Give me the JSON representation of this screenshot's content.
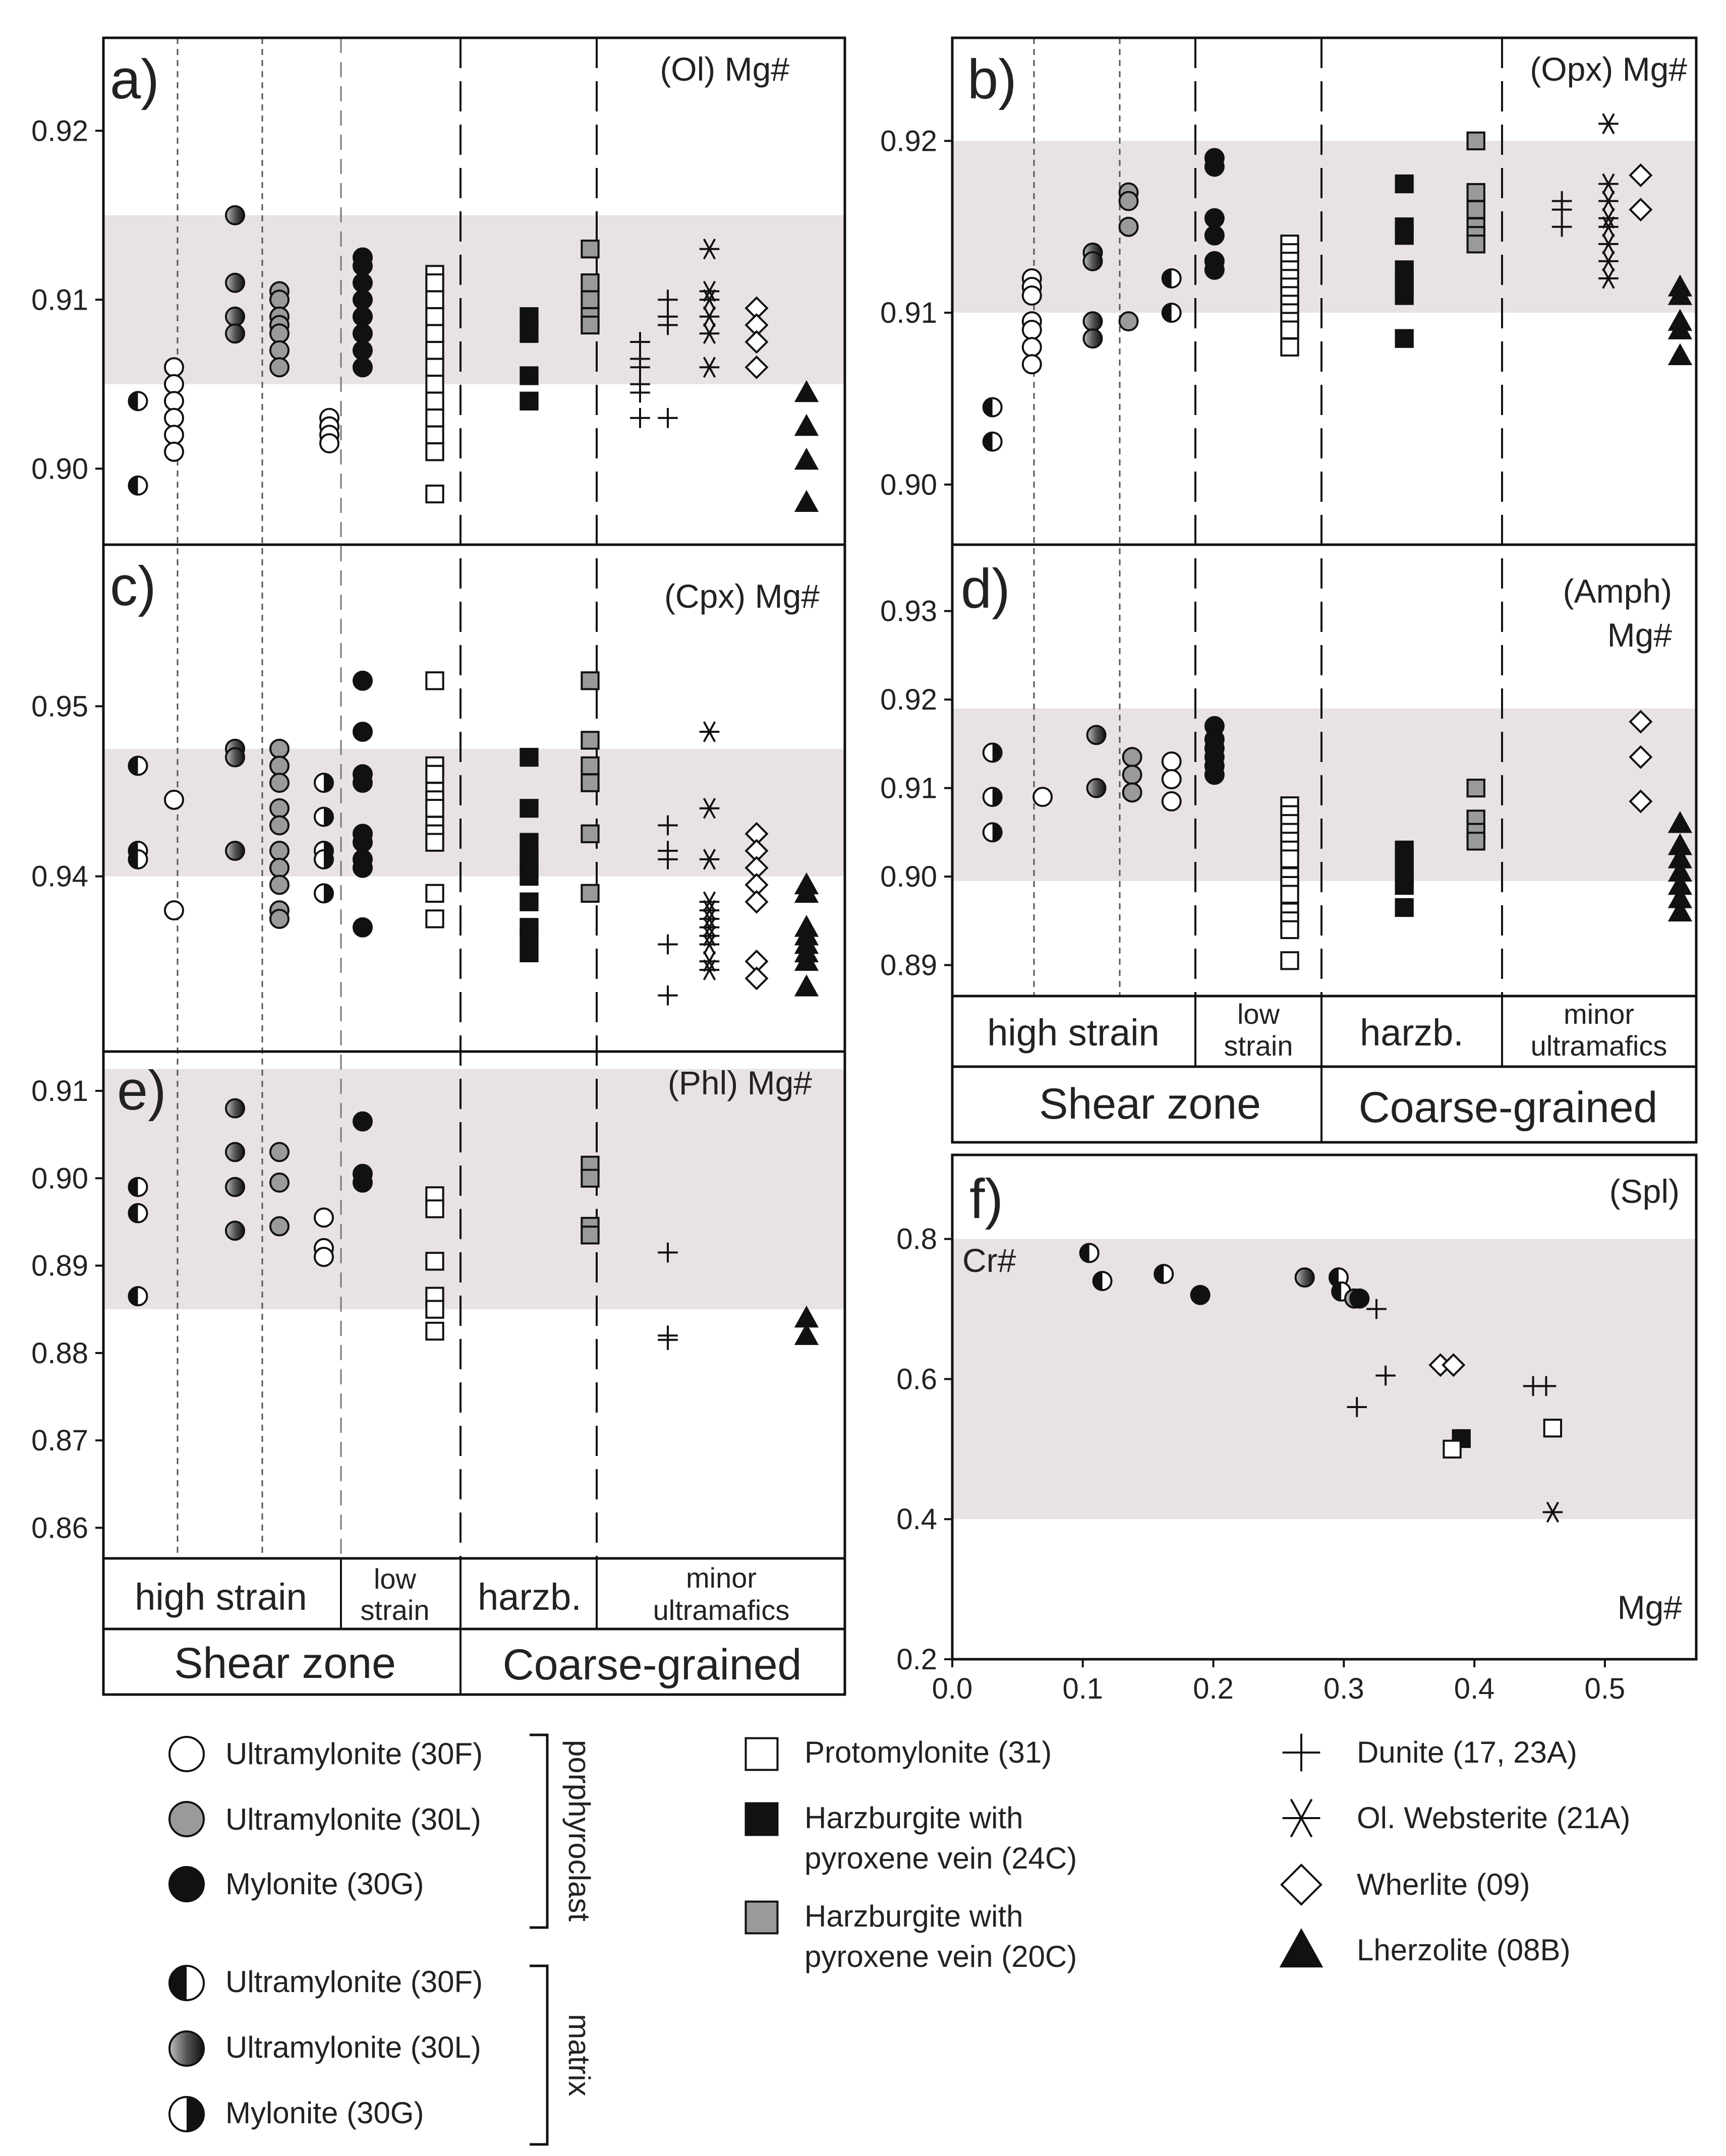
{
  "colors": {
    "band": "#e9e2e4",
    "white": "#ffffff",
    "grey": "#9a9a9a",
    "black": "#111111"
  },
  "series_styles": {
    "UP_F": {
      "shape": "circle",
      "fill": "white"
    },
    "UP_L": {
      "shape": "circle",
      "fill": "grey"
    },
    "MY_G": {
      "shape": "circle",
      "fill": "black"
    },
    "UM_F": {
      "shape": "circle",
      "fill": "half-left"
    },
    "UM_L": {
      "shape": "circle",
      "fill": "gradient"
    },
    "MM_G": {
      "shape": "circle",
      "fill": "half-right"
    },
    "PROTO": {
      "shape": "square",
      "fill": "white"
    },
    "HZ24": {
      "shape": "square",
      "fill": "black"
    },
    "HZ20": {
      "shape": "square",
      "fill": "grey"
    },
    "DUN": {
      "shape": "plus",
      "fill": "none"
    },
    "WEB": {
      "shape": "asterisk",
      "fill": "none"
    },
    "WHE": {
      "shape": "diamond",
      "fill": "white"
    },
    "LHZ": {
      "shape": "triangle",
      "fill": "black"
    }
  },
  "chart_data": [
    {
      "id": "a",
      "type": "scatter",
      "letter": "a)",
      "title": "(Ol) Mg#",
      "ylim": [
        0.8955,
        0.9255
      ],
      "yticks": [
        "0.90",
        "0.91",
        "0.92"
      ],
      "band": [
        0.905,
        0.915
      ],
      "points": [
        {
          "series": "UM_F",
          "col": 0.35,
          "y": [
            0.904,
            0.899
          ]
        },
        {
          "series": "UP_F",
          "col": 1,
          "y": [
            0.906,
            0.905,
            0.904,
            0.903,
            0.902,
            0.901
          ]
        },
        {
          "series": "UM_L",
          "col": 2.1,
          "y": [
            0.915,
            0.911,
            0.909,
            0.908
          ]
        },
        {
          "series": "UP_L",
          "col": 2.9,
          "y": [
            0.9105,
            0.91,
            0.909,
            0.9085,
            0.908,
            0.907,
            0.906
          ]
        },
        {
          "series": "UP_F",
          "col": 3.8,
          "y": [
            0.903,
            0.9025,
            0.902,
            0.9015
          ]
        },
        {
          "series": "MY_G",
          "col": 4.4,
          "y": [
            0.9125,
            0.912,
            0.911,
            0.91,
            0.909,
            0.908,
            0.907,
            0.906
          ]
        },
        {
          "series": "PROTO",
          "col": 5.7,
          "y": [
            0.9115,
            0.911,
            0.91,
            0.909,
            0.908,
            0.907,
            0.906,
            0.905,
            0.904,
            0.903,
            0.902,
            0.901,
            0.8985
          ]
        },
        {
          "series": "HZ24",
          "col": 7.4,
          "y": [
            0.909,
            0.908,
            0.9055,
            0.904
          ]
        },
        {
          "series": "HZ20",
          "col": 8.5,
          "y": [
            0.913,
            0.911,
            0.91,
            0.909,
            0.9085
          ]
        },
        {
          "series": "DUN",
          "col": 9.4,
          "y": [
            0.9075,
            0.9065,
            0.906,
            0.905,
            0.9045,
            0.903
          ]
        },
        {
          "series": "DUN",
          "col": 9.9,
          "y": [
            0.91,
            0.909,
            0.9085,
            0.903
          ]
        },
        {
          "series": "WEB",
          "col": 10.65,
          "y": [
            0.913,
            0.9105,
            0.91,
            0.909,
            0.908,
            0.906
          ]
        },
        {
          "series": "WHE",
          "col": 11.5,
          "y": [
            0.9095,
            0.9085,
            0.9075,
            0.906
          ]
        },
        {
          "series": "LHZ",
          "col": 12.4,
          "y": [
            0.9045,
            0.9025,
            0.9005,
            0.898
          ]
        }
      ]
    },
    {
      "id": "b",
      "type": "scatter",
      "letter": "b)",
      "title": "(Opx) Mg#",
      "ylim": [
        0.8965,
        0.926
      ],
      "yticks": [
        "0.90",
        "0.91",
        "0.92"
      ],
      "band": [
        0.91,
        0.92
      ],
      "points": [
        {
          "series": "UM_F",
          "col": 0.35,
          "y": [
            0.9045,
            0.9025
          ]
        },
        {
          "series": "UP_F",
          "col": 0.9,
          "y": [
            0.912,
            0.9115,
            0.911,
            0.9095,
            0.909,
            0.908,
            0.907
          ]
        },
        {
          "series": "UM_L",
          "col": 1.75,
          "y": [
            0.9135,
            0.913,
            0.9095,
            0.9085
          ]
        },
        {
          "series": "UP_L",
          "col": 2.25,
          "y": [
            0.917,
            0.9165,
            0.915,
            0.9095
          ]
        },
        {
          "series": "UM_F",
          "col": 2.85,
          "y": [
            0.912,
            0.91
          ]
        },
        {
          "series": "MY_G",
          "col": 3.45,
          "y": [
            0.919,
            0.9185,
            0.9155,
            0.9145,
            0.913,
            0.9125
          ]
        },
        {
          "series": "PROTO",
          "col": 4.5,
          "y": [
            0.914,
            0.9135,
            0.913,
            0.9125,
            0.912,
            0.9115,
            0.911,
            0.9105,
            0.91,
            0.9095,
            0.909,
            0.908
          ]
        },
        {
          "series": "HZ24",
          "col": 6.1,
          "y": [
            0.9175,
            0.915,
            0.9145,
            0.9125,
            0.912,
            0.9115,
            0.911,
            0.9085
          ]
        },
        {
          "series": "HZ20",
          "col": 7.1,
          "y": [
            0.92,
            0.917,
            0.916,
            0.915,
            0.9145,
            0.914
          ]
        },
        {
          "series": "DUN",
          "col": 8.3,
          "y": [
            0.9165,
            0.916,
            0.915
          ]
        },
        {
          "series": "WEB",
          "col": 8.95,
          "y": [
            0.921,
            0.9175,
            0.9165,
            0.9155,
            0.915,
            0.914,
            0.913,
            0.912
          ]
        },
        {
          "series": "WHE",
          "col": 9.4,
          "y": [
            0.918,
            0.916
          ]
        },
        {
          "series": "LHZ",
          "col": 9.95,
          "y": [
            0.9115,
            0.911,
            0.9095,
            0.909,
            0.9075
          ]
        }
      ]
    },
    {
      "id": "c",
      "type": "scatter",
      "letter": "c)",
      "title": "(Cpx) Mg#",
      "ylim": [
        0.9297,
        0.9595
      ],
      "yticks": [
        "0.94",
        "0.95"
      ],
      "band": [
        0.94,
        0.9475
      ],
      "points": [
        {
          "series": "UM_F",
          "col": 0.35,
          "y": [
            0.9465,
            0.9415,
            0.941
          ]
        },
        {
          "series": "UP_F",
          "col": 1,
          "y": [
            0.9445,
            0.938
          ]
        },
        {
          "series": "UM_L",
          "col": 2.1,
          "y": [
            0.9475,
            0.947,
            0.9415
          ]
        },
        {
          "series": "UP_L",
          "col": 2.9,
          "y": [
            0.9475,
            0.9465,
            0.9455,
            0.944,
            0.943,
            0.9415,
            0.9405,
            0.9395,
            0.938,
            0.9375
          ]
        },
        {
          "series": "MM_G",
          "col": 3.7,
          "y": [
            0.9455,
            0.9435,
            0.9415,
            0.941,
            0.939
          ]
        },
        {
          "series": "MY_G",
          "col": 4.4,
          "y": [
            0.9515,
            0.9485,
            0.946,
            0.9455,
            0.9425,
            0.942,
            0.941,
            0.9405,
            0.937
          ]
        },
        {
          "series": "PROTO",
          "col": 5.7,
          "y": [
            0.9515,
            0.9465,
            0.946,
            0.945,
            0.9445,
            0.944,
            0.943,
            0.9425,
            0.942,
            0.939,
            0.9375
          ]
        },
        {
          "series": "HZ24",
          "col": 7.4,
          "y": [
            0.947,
            0.944,
            0.942,
            0.941,
            0.9405,
            0.94,
            0.9385,
            0.937,
            0.9365,
            0.9355
          ]
        },
        {
          "series": "HZ20",
          "col": 8.5,
          "y": [
            0.9515,
            0.948,
            0.9465,
            0.9455,
            0.9425,
            0.939
          ]
        },
        {
          "series": "DUN",
          "col": 9.9,
          "y": [
            0.943,
            0.9415,
            0.941,
            0.936,
            0.933
          ]
        },
        {
          "series": "WEB",
          "col": 10.65,
          "y": [
            0.9485,
            0.944,
            0.941,
            0.9385,
            0.938,
            0.9375,
            0.937,
            0.9365,
            0.936,
            0.935,
            0.9345
          ]
        },
        {
          "series": "WHE",
          "col": 11.5,
          "y": [
            0.9425,
            0.9415,
            0.9405,
            0.9395,
            0.9385,
            0.935,
            0.934
          ]
        },
        {
          "series": "LHZ",
          "col": 12.4,
          "y": [
            0.9395,
            0.939,
            0.937,
            0.9365,
            0.936,
            0.9355,
            0.935,
            0.9335
          ]
        }
      ]
    },
    {
      "id": "d",
      "type": "scatter",
      "letter": "d)",
      "title_line1": "(Amph)",
      "title_line2": "Mg#",
      "ylim": [
        0.8865,
        0.9375
      ],
      "yticks": [
        "0.89",
        "0.90",
        "0.91",
        "0.92",
        "0.93"
      ],
      "band": [
        0.8995,
        0.919
      ],
      "points": [
        {
          "series": "MM_G",
          "col": 0.35,
          "y": [
            0.914,
            0.909,
            0.905
          ]
        },
        {
          "series": "UP_F",
          "col": 1.05,
          "y": [
            0.909
          ]
        },
        {
          "series": "UM_L",
          "col": 1.8,
          "y": [
            0.916,
            0.91
          ]
        },
        {
          "series": "UP_L",
          "col": 2.3,
          "y": [
            0.9135,
            0.9115,
            0.9095
          ]
        },
        {
          "series": "UP_F",
          "col": 2.85,
          "y": [
            0.913,
            0.911,
            0.9085
          ]
        },
        {
          "series": "MY_G",
          "col": 3.45,
          "y": [
            0.917,
            0.9155,
            0.9145,
            0.9135,
            0.9125,
            0.9115
          ]
        },
        {
          "series": "PROTO",
          "col": 4.5,
          "y": [
            0.908,
            0.907,
            0.906,
            0.905,
            0.904,
            0.903,
            0.902,
            0.9,
            0.899,
            0.898,
            0.896,
            0.895,
            0.894,
            0.8905
          ]
        },
        {
          "series": "HZ24",
          "col": 6.1,
          "y": [
            0.903,
            0.902,
            0.901,
            0.9,
            0.8995,
            0.899,
            0.8965
          ]
        },
        {
          "series": "HZ20",
          "col": 7.1,
          "y": [
            0.91,
            0.9065,
            0.905,
            0.904
          ]
        },
        {
          "series": "WHE",
          "col": 9.4,
          "y": [
            0.9175,
            0.9135,
            0.9085
          ]
        },
        {
          "series": "LHZ",
          "col": 9.95,
          "y": [
            0.906,
            0.9035,
            0.902,
            0.9005,
            0.899,
            0.8975,
            0.896
          ]
        }
      ]
    },
    {
      "id": "e",
      "type": "scatter",
      "letter": "e)",
      "title": "(Phl) Mg#",
      "ylim": [
        0.8565,
        0.9145
      ],
      "yticks": [
        "0.86",
        "0.87",
        "0.88",
        "0.89",
        "0.90",
        "0.91"
      ],
      "band": [
        0.885,
        0.9125
      ],
      "points": [
        {
          "series": "UM_F",
          "col": 0.35,
          "y": [
            0.899,
            0.896,
            0.8865
          ]
        },
        {
          "series": "UM_L",
          "col": 2.1,
          "y": [
            0.908,
            0.903,
            0.899,
            0.894
          ]
        },
        {
          "series": "UP_L",
          "col": 2.9,
          "y": [
            0.903,
            0.8995,
            0.8945
          ]
        },
        {
          "series": "UP_F",
          "col": 3.7,
          "y": [
            0.8955,
            0.892,
            0.891
          ]
        },
        {
          "series": "MY_G",
          "col": 4.4,
          "y": [
            0.9065,
            0.9005,
            0.8995
          ]
        },
        {
          "series": "PROTO",
          "col": 5.7,
          "y": [
            0.898,
            0.8965,
            0.8905,
            0.8865,
            0.885,
            0.8825
          ]
        },
        {
          "series": "HZ20",
          "col": 8.5,
          "y": [
            0.9015,
            0.9,
            0.8945,
            0.8935
          ]
        },
        {
          "series": "DUN",
          "col": 9.9,
          "y": [
            0.8915,
            0.882,
            0.8815
          ]
        },
        {
          "series": "LHZ",
          "col": 12.4,
          "y": [
            0.884,
            0.882
          ]
        }
      ]
    },
    {
      "id": "f",
      "type": "scatter",
      "letter": "f)",
      "title": "(Spl)",
      "xlabel": "Mg#",
      "ylabel": "Cr#",
      "xlim": [
        0.0,
        0.57
      ],
      "ylim": [
        0.2,
        0.92
      ],
      "band_y": [
        0.4,
        0.8
      ],
      "xticks": [
        "0.0",
        "0.1",
        "0.2",
        "0.3",
        "0.4",
        "0.5"
      ],
      "yticks": [
        "0.2",
        "0.4",
        "0.6",
        "0.8"
      ],
      "points": [
        {
          "series": "UM_F",
          "x": 0.105,
          "y": 0.78
        },
        {
          "series": "UM_F",
          "x": 0.115,
          "y": 0.74
        },
        {
          "series": "UM_F",
          "x": 0.162,
          "y": 0.75
        },
        {
          "series": "MY_G",
          "x": 0.19,
          "y": 0.72
        },
        {
          "series": "UM_L",
          "x": 0.27,
          "y": 0.745
        },
        {
          "series": "UM_F",
          "x": 0.296,
          "y": 0.745
        },
        {
          "series": "UM_F",
          "x": 0.298,
          "y": 0.725
        },
        {
          "series": "UM_L",
          "x": 0.308,
          "y": 0.715
        },
        {
          "series": "MY_G",
          "x": 0.312,
          "y": 0.715
        },
        {
          "series": "DUN",
          "x": 0.325,
          "y": 0.7
        },
        {
          "series": "DUN",
          "x": 0.332,
          "y": 0.605
        },
        {
          "series": "DUN",
          "x": 0.31,
          "y": 0.56
        },
        {
          "series": "WHE",
          "x": 0.374,
          "y": 0.62
        },
        {
          "series": "WHE",
          "x": 0.384,
          "y": 0.62
        },
        {
          "series": "HZ24",
          "x": 0.39,
          "y": 0.515
        },
        {
          "series": "PROTO",
          "x": 0.383,
          "y": 0.5
        },
        {
          "series": "DUN",
          "x": 0.445,
          "y": 0.59
        },
        {
          "series": "DUN",
          "x": 0.455,
          "y": 0.59
        },
        {
          "series": "PROTO",
          "x": 0.46,
          "y": 0.53
        },
        {
          "series": "WEB",
          "x": 0.46,
          "y": 0.41
        }
      ]
    }
  ],
  "categories": {
    "high_strain": "high strain",
    "low_strain_1": "low",
    "low_strain_2": "strain",
    "harzb": "harzb.",
    "minor_1": "minor",
    "minor_2": "ultramafics",
    "shear_zone": "Shear zone",
    "coarse_grained": "Coarse-grained"
  },
  "legend": {
    "porphyroclast_label": "porphyroclast",
    "matrix_label": "matrix",
    "items": [
      {
        "series": "UP_F",
        "label": "Ultramylonite (30F)"
      },
      {
        "series": "UP_L",
        "label": "Ultramylonite (30L)"
      },
      {
        "series": "MY_G",
        "label": "Mylonite (30G)"
      },
      {
        "series": "UM_F",
        "label": "Ultramylonite (30F)"
      },
      {
        "series": "UM_L",
        "label": "Ultramylonite (30L)"
      },
      {
        "series": "MM_G",
        "label": "Mylonite (30G)"
      },
      {
        "series": "PROTO",
        "label": "Protomylonite (31)"
      },
      {
        "series": "HZ24",
        "label": "Harzburgite with",
        "label2": "pyroxene vein (24C)"
      },
      {
        "series": "HZ20",
        "label": "Harzburgite with",
        "label2": "pyroxene vein (20C)"
      },
      {
        "series": "DUN",
        "label": "Dunite (17, 23A)"
      },
      {
        "series": "WEB",
        "label": "Ol. Websterite (21A)"
      },
      {
        "series": "WHE",
        "label": "Wherlite (09)"
      },
      {
        "series": "LHZ",
        "label": "Lherzolite (08B)"
      }
    ]
  }
}
